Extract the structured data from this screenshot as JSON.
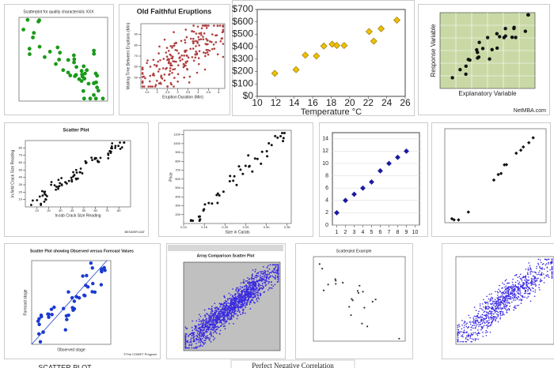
{
  "tiles": [
    {
      "title": "Scatterplot for quality characteristic XXX"
    },
    {
      "title": "Old Faithful Eruptions",
      "xlabel": "Eruption Duration (Min)",
      "ylabel": "Waiting Time Between Eruptions (Min)",
      "xlim": [
        1.2,
        5.3
      ],
      "ylim": [
        40,
        100
      ],
      "xticks": [
        1.5,
        2.0,
        2.5,
        3.0,
        3.5,
        4.0,
        4.5,
        5.0
      ],
      "yticks": [
        50,
        60,
        70,
        80,
        90
      ]
    },
    {
      "type": "scatter",
      "xlabel": "Temperature °C",
      "color": "#f0c000",
      "xlim": [
        10,
        26
      ],
      "ylim": [
        0,
        700
      ],
      "xticks": [
        10,
        12,
        14,
        16,
        18,
        20,
        22,
        24,
        26
      ],
      "yticks": [
        {
          "value": 0,
          "label": "$0"
        },
        {
          "value": 100,
          "label": "$100"
        },
        {
          "value": 200,
          "label": "$200"
        },
        {
          "value": 300,
          "label": "$300"
        },
        {
          "value": 400,
          "label": "$400"
        },
        {
          "value": 500,
          "label": "$500"
        },
        {
          "value": 600,
          "label": "$600"
        },
        {
          "value": 700,
          "label": "$700"
        }
      ],
      "x": [
        11.9,
        14.2,
        15.2,
        16.4,
        17.2,
        18.1,
        18.6,
        19.4,
        22.1,
        22.6,
        23.4,
        25.1
      ],
      "values": [
        185,
        215,
        332,
        325,
        405,
        420,
        410,
        410,
        522,
        445,
        545,
        614
      ]
    },
    {
      "xlabel": "Explanatory Variable",
      "ylabel": "Response Variable",
      "credit": "NetMBA.com"
    },
    {
      "title": "Scatter Plot",
      "xlabel": "In-lab Crack Size Reading",
      "ylabel": "In-field Crack Size Reading",
      "xlim": [
        0,
        90
      ],
      "ylim": [
        0,
        90
      ],
      "xticks": [
        10,
        20,
        30,
        40,
        50,
        60,
        70,
        80
      ],
      "yticks": [
        10,
        20,
        30,
        40,
        50,
        60,
        70,
        80
      ],
      "credit": "BENDER.DAT"
    },
    {
      "xlabel": "Size in Carats",
      "ylabel": "Price",
      "xlim": [
        0.1,
        0.36
      ],
      "ylim": [
        100,
        1150
      ],
      "xticks": [
        {
          "value": 0.1,
          "label": "0.10"
        },
        0.15,
        {
          "value": 0.2,
          "label": "0.20"
        },
        0.25,
        {
          "value": 0.3,
          "label": "0.30"
        },
        0.35
      ],
      "yticks": [
        200,
        300,
        400,
        500,
        600,
        700,
        800,
        900,
        1000,
        1100
      ]
    },
    {
      "type": "scatter",
      "color": "#1a1aa0",
      "grid": true,
      "xlim": [
        0.5,
        10.5
      ],
      "ylim": [
        0,
        15
      ],
      "xticks": [
        1,
        2,
        3,
        4,
        5,
        6,
        7,
        8,
        9,
        10
      ],
      "yticks": [
        0,
        2,
        4,
        6,
        8,
        10,
        12,
        14
      ],
      "x": [
        1,
        2,
        3,
        4,
        5,
        6,
        7,
        8,
        9
      ],
      "values": [
        2,
        4,
        5,
        6,
        7,
        8.8,
        10,
        11,
        12
      ]
    },
    {},
    {
      "title": "Scatter Plot showing Observed versus Forecast Values",
      "xlabel": "Observed stage",
      "ylabel": "Forecast stage",
      "credit": "©The COMET Program"
    },
    {
      "title": "Array Comparison Scatter Plot"
    },
    {
      "title": "Scatterplot Example"
    },
    {}
  ],
  "captions": [
    "SCATTER PLOT",
    "Perfect Negative Correlation"
  ]
}
